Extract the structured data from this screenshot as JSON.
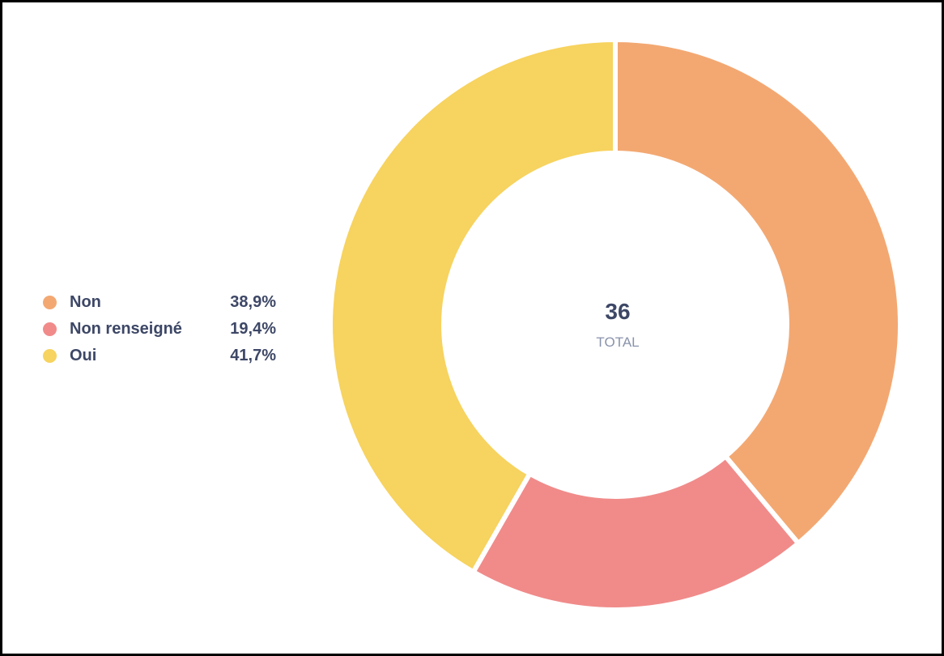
{
  "chart_data": {
    "type": "pie",
    "variant": "donut",
    "categories": [
      "Non",
      "Non renseigné",
      "Oui"
    ],
    "values": [
      38.9,
      19.4,
      41.7
    ],
    "value_labels": [
      "38,9%",
      "19,4%",
      "41,7%"
    ],
    "colors": [
      "#f3a872",
      "#f08b8a",
      "#f7d35f"
    ],
    "center_value": "36",
    "center_label": "TOTAL",
    "legend_position": "left"
  }
}
